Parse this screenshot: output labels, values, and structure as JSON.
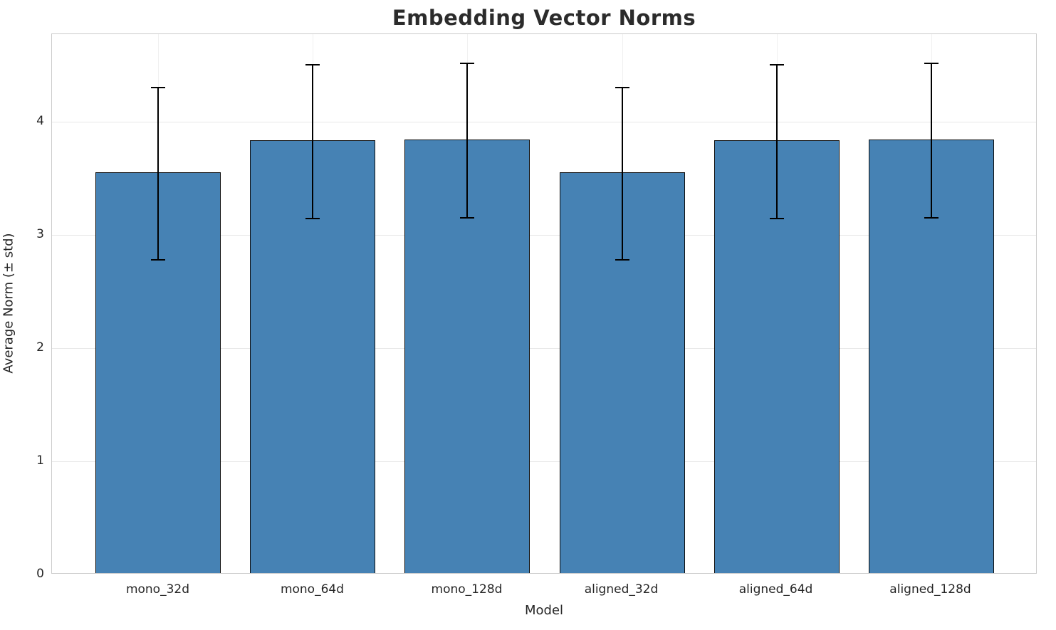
{
  "chart_data": {
    "type": "bar",
    "title": "Embedding Vector Norms",
    "xlabel": "Model",
    "ylabel": "Average Norm (± std)",
    "categories": [
      "mono_32d",
      "mono_64d",
      "mono_128d",
      "aligned_32d",
      "aligned_64d",
      "aligned_128d"
    ],
    "values": [
      3.54,
      3.82,
      3.83,
      3.54,
      3.82,
      3.83
    ],
    "errors": [
      0.76,
      0.68,
      0.68,
      0.76,
      0.68,
      0.68
    ],
    "yticks": [
      0,
      1,
      2,
      3,
      4
    ],
    "ylim": [
      0,
      4.77
    ],
    "grid": true,
    "legend_position": "none",
    "bar_color": "#4682b4",
    "bar_edge_color": "#0d0d0d",
    "error_color": "#000000",
    "title_color": "#2b2b2b",
    "text_color": "#262626"
  }
}
